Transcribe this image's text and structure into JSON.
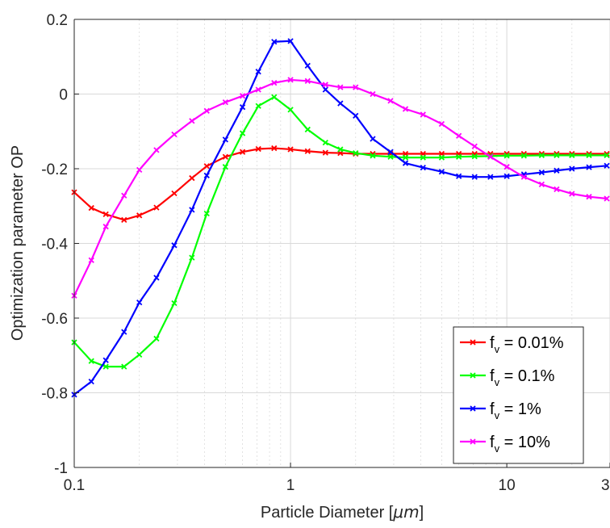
{
  "chart_data": {
    "type": "line",
    "title": "",
    "xlabel": "Particle Diameter  [",
    "xlabel_unit": "μm",
    "xlabel_close": "]",
    "ylabel": "Optimization parameter OP",
    "xscale": "log",
    "xlim": [
      0.1,
      30
    ],
    "ylim": [
      -1,
      0.2
    ],
    "xticks": [
      0.1,
      1,
      10,
      30
    ],
    "xtick_labels": [
      "0.1",
      "1",
      "10",
      "30"
    ],
    "yticks": [
      -1,
      -0.8,
      -0.6,
      -0.4,
      -0.2,
      0,
      0.2
    ],
    "ytick_labels": [
      "-1",
      "-0.8",
      "-0.6",
      "-0.4",
      "-0.2",
      "0",
      "0.2"
    ],
    "grid": true,
    "legend_position": "bottom-right",
    "x": [
      0.1,
      0.12,
      0.14,
      0.17,
      0.2,
      0.24,
      0.29,
      0.35,
      0.41,
      0.5,
      0.6,
      0.71,
      0.84,
      1.0,
      1.2,
      1.45,
      1.7,
      2.0,
      2.4,
      2.9,
      3.4,
      4.1,
      5.0,
      6.0,
      7.1,
      8.4,
      10.0,
      12.0,
      14.5,
      17.0,
      20.0,
      24.0,
      29.0
    ],
    "series": [
      {
        "name_prefix": "f",
        "name_sub": "v",
        "name_suffix": " = 0.01%",
        "color": "#ff0000",
        "values": [
          -0.263,
          -0.305,
          -0.322,
          -0.337,
          -0.325,
          -0.304,
          -0.266,
          -0.225,
          -0.193,
          -0.168,
          -0.155,
          -0.147,
          -0.145,
          -0.148,
          -0.153,
          -0.157,
          -0.158,
          -0.16,
          -0.16,
          -0.16,
          -0.16,
          -0.16,
          -0.16,
          -0.16,
          -0.16,
          -0.16,
          -0.16,
          -0.16,
          -0.16,
          -0.16,
          -0.16,
          -0.16,
          -0.16
        ]
      },
      {
        "name_prefix": "f",
        "name_sub": "v",
        "name_suffix": " = 0.1%",
        "color": "#00ff00",
        "values": [
          -0.665,
          -0.715,
          -0.73,
          -0.73,
          -0.698,
          -0.655,
          -0.56,
          -0.438,
          -0.32,
          -0.195,
          -0.105,
          -0.032,
          -0.008,
          -0.042,
          -0.095,
          -0.13,
          -0.148,
          -0.158,
          -0.165,
          -0.168,
          -0.17,
          -0.17,
          -0.17,
          -0.168,
          -0.167,
          -0.166,
          -0.165,
          -0.165,
          -0.164,
          -0.164,
          -0.164,
          -0.164,
          -0.164
        ]
      },
      {
        "name_prefix": "f",
        "name_sub": "v",
        "name_suffix": " = 1%",
        "color": "#0000ff",
        "values": [
          -0.805,
          -0.77,
          -0.713,
          -0.637,
          -0.558,
          -0.492,
          -0.405,
          -0.31,
          -0.218,
          -0.122,
          -0.035,
          0.06,
          0.14,
          0.142,
          0.076,
          0.012,
          -0.025,
          -0.058,
          -0.12,
          -0.155,
          -0.185,
          -0.197,
          -0.208,
          -0.22,
          -0.222,
          -0.222,
          -0.22,
          -0.215,
          -0.21,
          -0.205,
          -0.2,
          -0.196,
          -0.192
        ]
      },
      {
        "name_prefix": "f",
        "name_sub": "v",
        "name_suffix": " = 10%",
        "color": "#ff00ff",
        "values": [
          -0.54,
          -0.445,
          -0.355,
          -0.272,
          -0.203,
          -0.15,
          -0.108,
          -0.072,
          -0.045,
          -0.022,
          -0.005,
          0.012,
          0.03,
          0.038,
          0.035,
          0.025,
          0.018,
          0.018,
          0.0,
          -0.018,
          -0.04,
          -0.055,
          -0.08,
          -0.112,
          -0.14,
          -0.168,
          -0.195,
          -0.222,
          -0.242,
          -0.255,
          -0.267,
          -0.275,
          -0.28
        ]
      }
    ]
  }
}
